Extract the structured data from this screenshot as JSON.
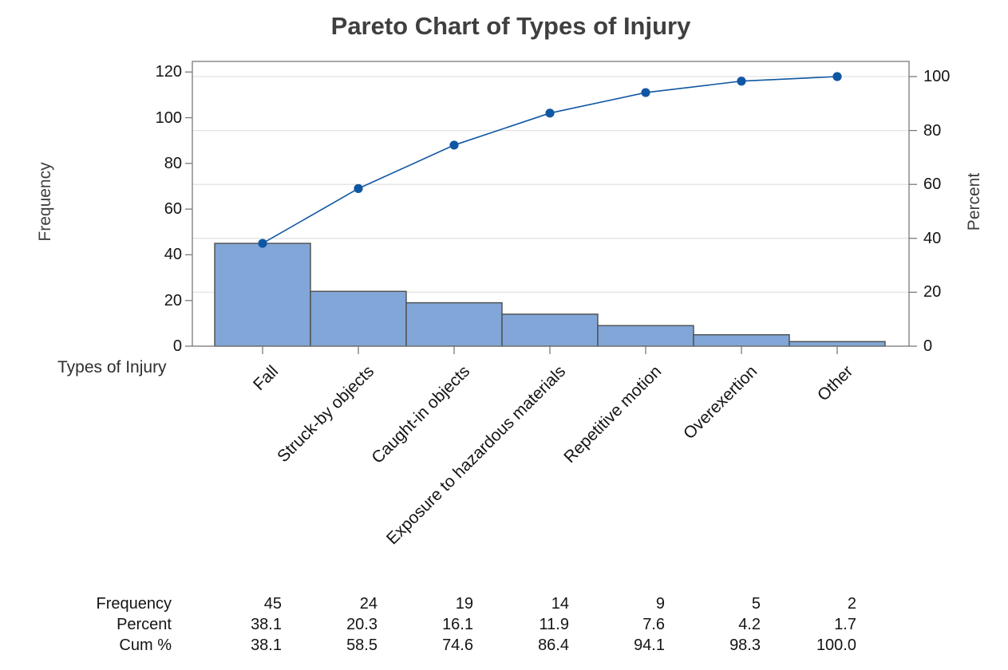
{
  "title": "Pareto Chart of Types of Injury",
  "axes": {
    "left_label": "Frequency",
    "right_label": "Percent",
    "x_label": "Types of Injury",
    "left_tick_labels": [
      "0",
      "20",
      "40",
      "60",
      "80",
      "100",
      "120"
    ],
    "right_tick_labels": [
      "0",
      "20",
      "40",
      "60",
      "80",
      "100"
    ]
  },
  "chart_data": {
    "type": "pareto (bar + cumulative percent line)",
    "title": "Pareto Chart of Types of Injury",
    "xlabel": "Types of Injury",
    "categories": [
      "Fall",
      "Struck-by objects",
      "Caught-in objects",
      "Exposure to hazardous materials",
      "Repetitive motion",
      "Overexertion",
      "Other"
    ],
    "series": [
      {
        "name": "Frequency",
        "type": "bar",
        "axis": "left",
        "values": [
          45,
          24,
          19,
          14,
          9,
          5,
          2
        ]
      },
      {
        "name": "Percent",
        "type": "table-only",
        "values": [
          38.1,
          20.3,
          16.1,
          11.9,
          7.6,
          4.2,
          1.7
        ]
      },
      {
        "name": "Cum %",
        "type": "line",
        "axis": "right",
        "values": [
          38.1,
          58.5,
          74.6,
          86.4,
          94.1,
          98.3,
          100.0
        ]
      }
    ],
    "cumulative_frequency": [
      45,
      69,
      88,
      102,
      111,
      116,
      118
    ],
    "total_frequency": 118,
    "freq_axis": {
      "label": "Frequency",
      "min": 0,
      "max": 120,
      "step": 20
    },
    "pct_axis": {
      "label": "Percent",
      "min": 0,
      "max": 100,
      "step": 20
    },
    "legend": "none",
    "grid": "horizontal gridlines at Percent ticks 20,40,60,80,100"
  },
  "table": {
    "rows": [
      {
        "label": "Frequency",
        "values": [
          "45",
          "24",
          "19",
          "14",
          "9",
          "5",
          "2"
        ]
      },
      {
        "label": "Percent",
        "values": [
          "38.1",
          "20.3",
          "16.1",
          "11.9",
          "7.6",
          "4.2",
          "1.7"
        ]
      },
      {
        "label": "Cum %",
        "values": [
          "38.1",
          "58.5",
          "74.6",
          "86.4",
          "94.1",
          "98.3",
          "100.0"
        ]
      }
    ]
  },
  "colors": {
    "bar_fill": "#81A6D7",
    "bar_border": "#4D4D4D",
    "line": "#1057A3",
    "marker": "#1057A3",
    "grid": "#E3E3E3",
    "frame": "#7A7A7A",
    "title_text": "#3F3F3F",
    "tick_text": "#141414"
  }
}
